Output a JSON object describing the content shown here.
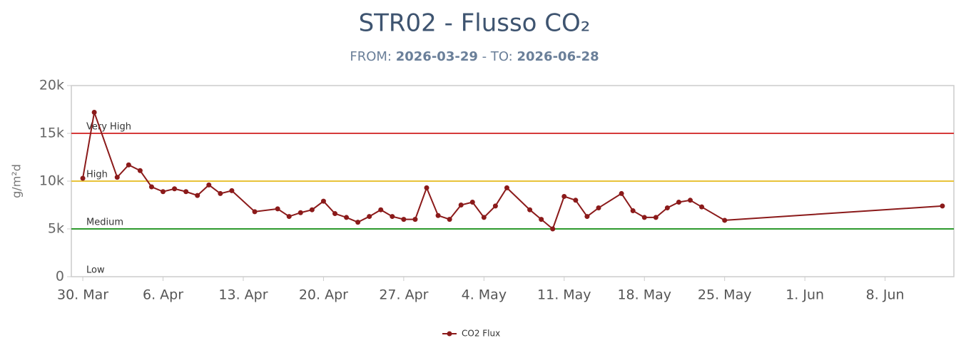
{
  "chart_data": {
    "type": "line",
    "title": "STR02 - Flusso CO₂",
    "subtitle": {
      "from_label": "FROM:",
      "from": "2026-03-29",
      "to_label": "- TO:",
      "to": "2026-06-28"
    },
    "y_label": "g/m²d",
    "x": [
      "2026-03-30",
      "2026-03-31",
      "2026-04-02",
      "2026-04-03",
      "2026-04-04",
      "2026-04-05",
      "2026-04-06",
      "2026-04-07",
      "2026-04-08",
      "2026-04-09",
      "2026-04-10",
      "2026-04-11",
      "2026-04-12",
      "2026-04-14",
      "2026-04-16",
      "2026-04-17",
      "2026-04-18",
      "2026-04-19",
      "2026-04-20",
      "2026-04-21",
      "2026-04-22",
      "2026-04-23",
      "2026-04-24",
      "2026-04-25",
      "2026-04-26",
      "2026-04-27",
      "2026-04-28",
      "2026-04-29",
      "2026-04-30",
      "2026-05-01",
      "2026-05-02",
      "2026-05-03",
      "2026-05-04",
      "2026-05-05",
      "2026-05-06",
      "2026-05-08",
      "2026-05-09",
      "2026-05-10",
      "2026-05-11",
      "2026-05-12",
      "2026-05-13",
      "2026-05-14",
      "2026-05-16",
      "2026-05-17",
      "2026-05-18",
      "2026-05-19",
      "2026-05-20",
      "2026-05-21",
      "2026-05-22",
      "2026-05-23",
      "2026-05-25",
      "2026-06-13"
    ],
    "series": [
      {
        "name": "CO2 Flux",
        "color": "#8b1a1a",
        "values": [
          10300,
          17200,
          10400,
          11700,
          11100,
          9400,
          8900,
          9200,
          8900,
          8500,
          9600,
          8700,
          9000,
          6800,
          7100,
          6300,
          6700,
          7000,
          7900,
          6600,
          6200,
          5700,
          6300,
          7000,
          6300,
          6000,
          6000,
          9300,
          6400,
          6000,
          7500,
          7800,
          6200,
          7400,
          9300,
          7000,
          6000,
          5000,
          8400,
          8000,
          6300,
          7200,
          8700,
          6900,
          6200,
          6200,
          7200,
          7800,
          8000,
          7300,
          5900,
          7400
        ]
      }
    ],
    "xlim": [
      "2026-03-29",
      "2026-06-14"
    ],
    "xticks": [
      {
        "value": "2026-03-30",
        "label": "30. Mar"
      },
      {
        "value": "2026-04-06",
        "label": "6. Apr"
      },
      {
        "value": "2026-04-13",
        "label": "13. Apr"
      },
      {
        "value": "2026-04-20",
        "label": "20. Apr"
      },
      {
        "value": "2026-04-27",
        "label": "27. Apr"
      },
      {
        "value": "2026-05-04",
        "label": "4. May"
      },
      {
        "value": "2026-05-11",
        "label": "11. May"
      },
      {
        "value": "2026-05-18",
        "label": "18. May"
      },
      {
        "value": "2026-05-25",
        "label": "25. May"
      },
      {
        "value": "2026-06-01",
        "label": "1. Jun"
      },
      {
        "value": "2026-06-08",
        "label": "8. Jun"
      }
    ],
    "ylim": [
      0,
      20000
    ],
    "yticks": [
      0,
      {
        "value": 5000,
        "label": "5k"
      },
      {
        "value": 10000,
        "label": "10k"
      },
      {
        "value": 15000,
        "label": "15k"
      },
      {
        "value": 20000,
        "label": "20k"
      }
    ],
    "plot_lines": [
      {
        "value": 15000,
        "label": "Very High",
        "color": "#d63a3a"
      },
      {
        "value": 10000,
        "label": "High",
        "color": "#e8c33a"
      },
      {
        "value": 5000,
        "label": "Medium",
        "color": "#2e9a2e"
      },
      {
        "value": 0,
        "label": "Low"
      }
    ],
    "legend": "bottom"
  }
}
